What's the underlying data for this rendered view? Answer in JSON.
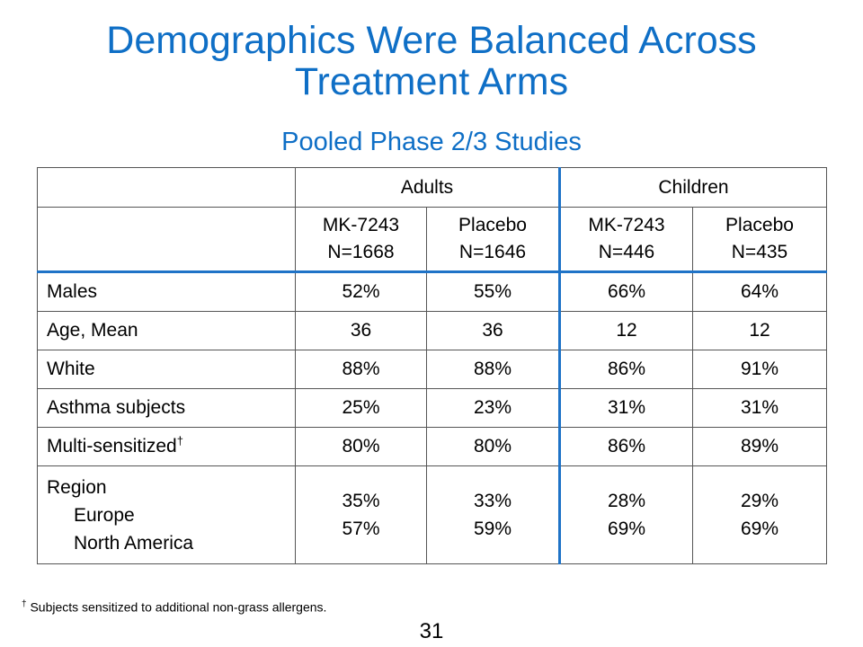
{
  "slide": {
    "title_line1": "Demographics Were Balanced Across",
    "title_line2": "Treatment Arms",
    "subtitle": "Pooled Phase 2/3 Studies",
    "page_number": "31",
    "footnote_mark": "†",
    "footnote_text": " Subjects sensitized to additional non-grass allergens.",
    "colors": {
      "title": "#0f6fc6",
      "divider": "#1f73c7"
    }
  },
  "table": {
    "group_headers": [
      "Adults",
      "Children"
    ],
    "arm_headers": [
      {
        "name": "MK-7243",
        "n": "N=1668"
      },
      {
        "name": "Placebo",
        "n": "N=1646"
      },
      {
        "name": "MK-7243",
        "n": "N=446"
      },
      {
        "name": "Placebo",
        "n": "N=435"
      }
    ],
    "rows": [
      {
        "label": "Males",
        "values": [
          "52%",
          "55%",
          "66%",
          "64%"
        ]
      },
      {
        "label": "Age, Mean",
        "values": [
          "36",
          "36",
          "12",
          "12"
        ]
      },
      {
        "label": "White",
        "values": [
          "88%",
          "88%",
          "86%",
          "91%"
        ]
      },
      {
        "label": "Asthma subjects",
        "values": [
          "25%",
          "23%",
          "31%",
          "31%"
        ]
      },
      {
        "label": "Multi-sensitized",
        "label_mark": "†",
        "values": [
          "80%",
          "80%",
          "86%",
          "89%"
        ]
      }
    ],
    "region": {
      "label": "Region",
      "sub_labels": [
        "Europe",
        "North America"
      ],
      "values": [
        [
          "35%",
          "57%"
        ],
        [
          "33%",
          "59%"
        ],
        [
          "28%",
          "69%"
        ],
        [
          "29%",
          "69%"
        ]
      ]
    }
  }
}
